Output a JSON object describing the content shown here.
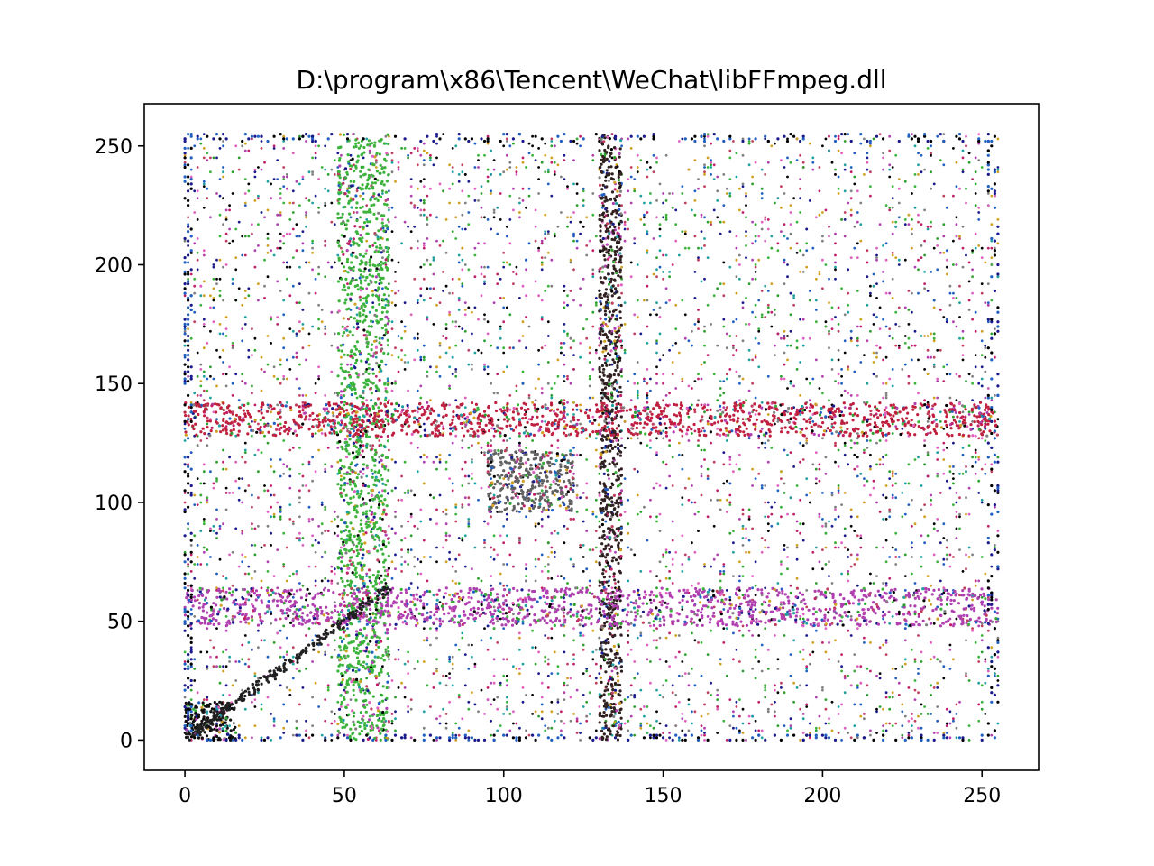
{
  "chart_data": {
    "type": "scatter",
    "title": "D:\\program\\x86\\Tencent\\WeChat\\libFFmpeg.dll",
    "xlabel": "",
    "ylabel": "",
    "xlim": [
      -12.75,
      267.75
    ],
    "ylim": [
      -12.75,
      267.75
    ],
    "x_ticks": [
      0,
      50,
      100,
      150,
      200,
      250
    ],
    "y_ticks": [
      0,
      50,
      100,
      150,
      200,
      250
    ],
    "grid": false,
    "legend": "none",
    "point_domain": [
      0,
      255
    ],
    "description_of_structure": [
      {
        "kind": "vertical_band",
        "x": [
          48,
          64
        ],
        "y": [
          0,
          255
        ],
        "color": "#3cb43c"
      },
      {
        "kind": "vertical_band",
        "x": [
          130,
          137
        ],
        "y": [
          0,
          255
        ],
        "color": "#302020"
      },
      {
        "kind": "horizontal_band",
        "x": [
          0,
          255
        ],
        "y": [
          48,
          64
        ],
        "color": "#b040b0"
      },
      {
        "kind": "horizontal_band",
        "x": [
          0,
          255
        ],
        "y": [
          128,
          142
        ],
        "color": "#c02040"
      },
      {
        "kind": "block",
        "x": [
          95,
          122
        ],
        "y": [
          96,
          122
        ],
        "color": "#606060"
      },
      {
        "kind": "block",
        "x": [
          0,
          16
        ],
        "y": [
          0,
          16
        ],
        "color": "#101010"
      },
      {
        "kind": "diagonal",
        "x": [
          0,
          64
        ],
        "y": [
          0,
          64
        ],
        "color": "#202020"
      }
    ],
    "palette": [
      "#000000",
      "#1a1a8c",
      "#2060c0",
      "#2ca02c",
      "#3cb43c",
      "#c0206a",
      "#c04060",
      "#b040b0",
      "#808080",
      "#d0a020",
      "#20a0a0",
      "#e060c0"
    ]
  }
}
